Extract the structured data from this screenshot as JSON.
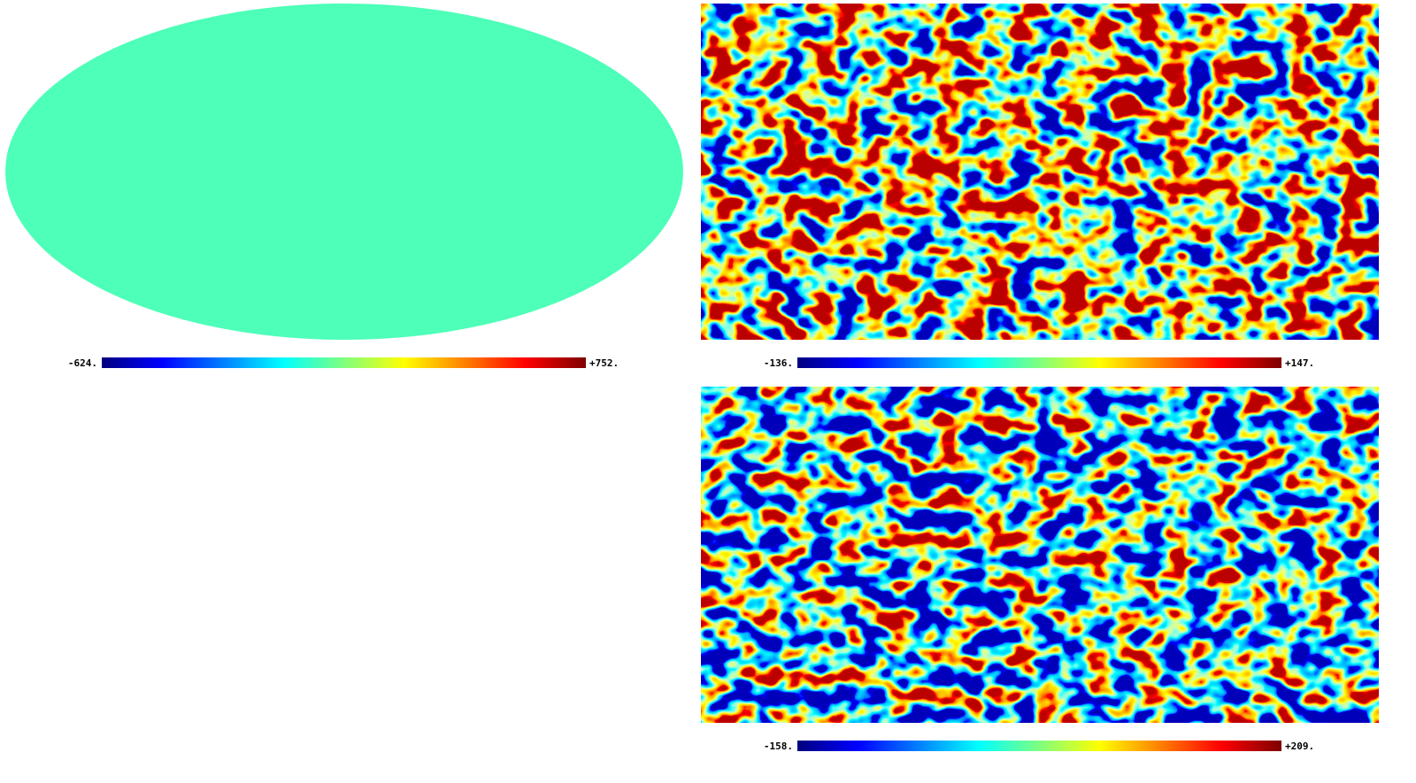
{
  "maps": [
    {
      "colorbar": {
        "min": {
          "value": -624,
          "label": "-624."
        },
        "max": {
          "value": 752,
          "label": "+752."
        }
      }
    },
    {
      "colorbar": {
        "min": {
          "value": -136,
          "label": "-136."
        },
        "max": {
          "value": 147,
          "label": "+147."
        }
      }
    },
    {
      "colorbar": {
        "min": {
          "value": -158,
          "label": "-158."
        },
        "max": {
          "value": 209,
          "label": "+209."
        }
      }
    }
  ]
}
